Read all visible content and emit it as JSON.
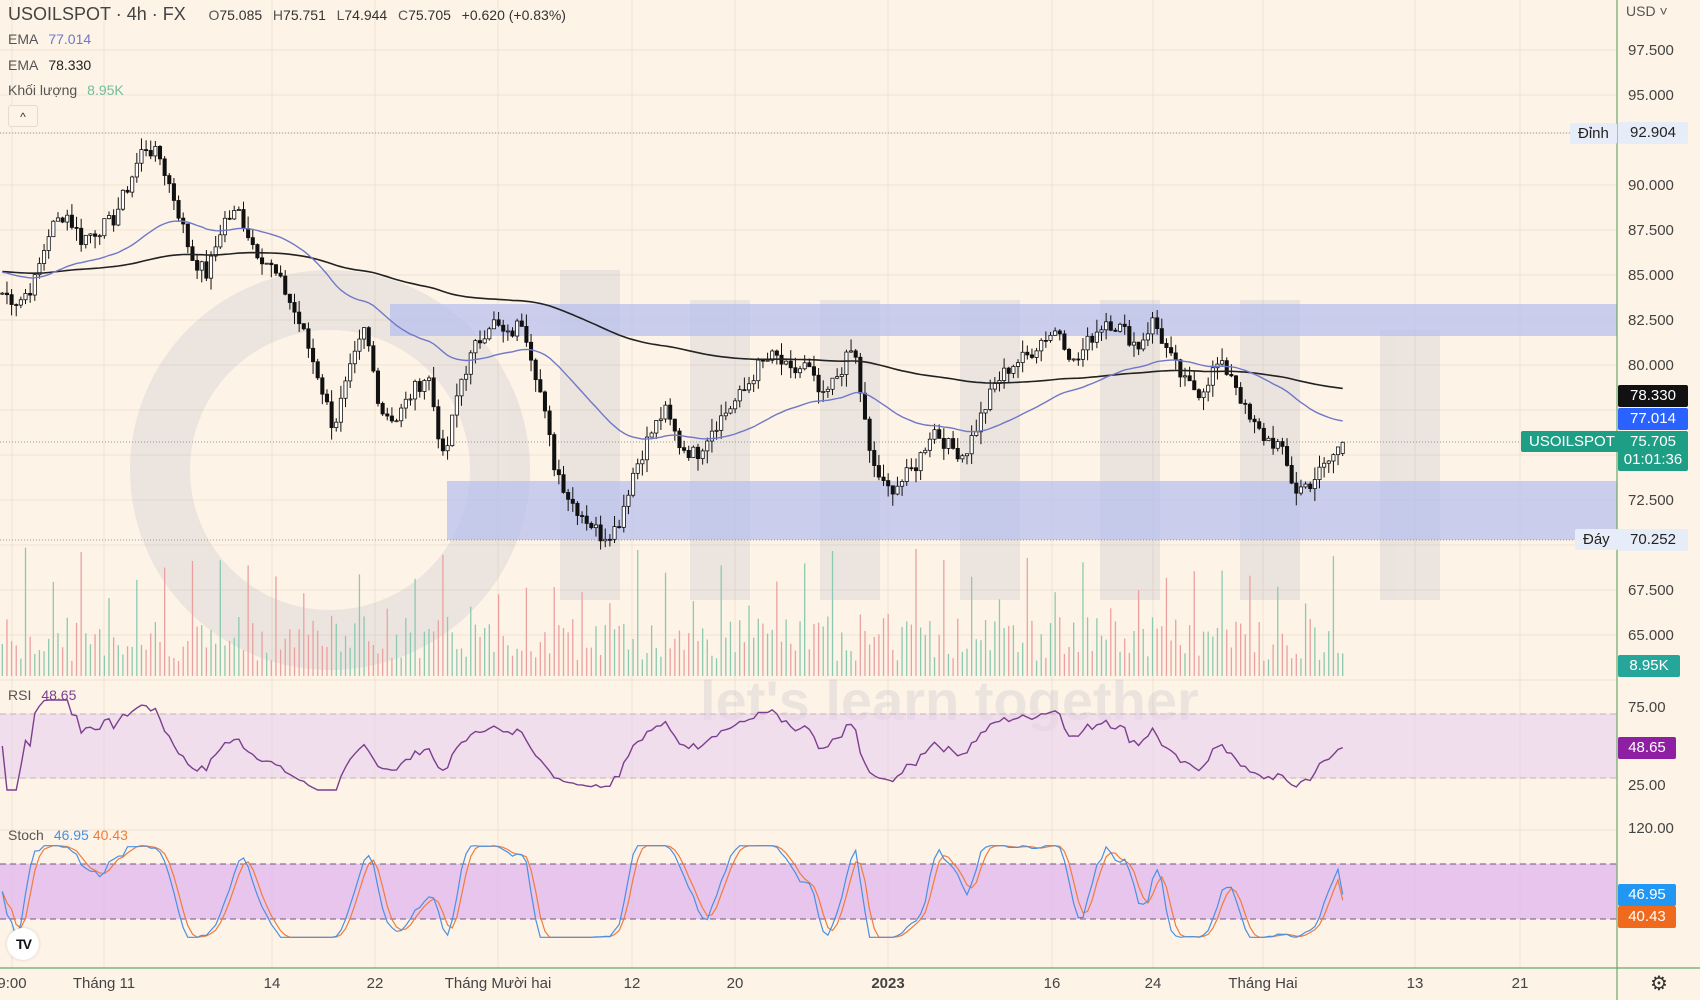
{
  "header": {
    "symbol": "USOILSPOT · 4h · FX",
    "open_k": "O",
    "open": "75.085",
    "high_k": "H",
    "high": "75.751",
    "low_k": "L",
    "low": "74.944",
    "close_k": "C",
    "close": "75.705",
    "change": "+0.620 (+0.83%)",
    "ema1_label": "EMA",
    "ema1_value": "77.014",
    "ema2_label": "EMA",
    "ema2_value": "78.330",
    "volume_label": "Khối lượng",
    "volume_value": "8.95K",
    "collapse_icon": "^"
  },
  "price_axis": {
    "currency": "USD ˅",
    "ticks": [
      "97.500",
      "95.000",
      "90.000",
      "87.500",
      "85.000",
      "82.500",
      "80.000",
      "72.500",
      "67.500",
      "65.000"
    ],
    "high_label": "Đỉnh",
    "high_value": "92.904",
    "low_label": "Đáy",
    "low_value": "70.252",
    "ema200_tag": "78.330",
    "ema50_tag": "77.014",
    "symbol_tag": "USOILSPOT",
    "last_price_tag": "75.705",
    "countdown": "01:01:36",
    "volume_tag": "8.95K"
  },
  "rsi": {
    "label": "RSI",
    "value": "48.65",
    "ticks": [
      "75.00",
      "25.00"
    ],
    "tag": "48.65"
  },
  "stoch": {
    "label": "Stoch",
    "k_value": "46.95",
    "d_value": "40.43",
    "ticks": [
      "120.00"
    ],
    "k_tag": "46.95",
    "d_tag": "40.43"
  },
  "time_axis": {
    "labels": [
      "9:00",
      "Tháng 11",
      "14",
      "22",
      "Tháng Mười hai",
      "12",
      "20",
      "2023",
      "16",
      "24",
      "Tháng Hai",
      "13",
      "21"
    ]
  },
  "watermark": "let's learn together",
  "colors": {
    "background": "#fdf3e6",
    "zone": "#b8c0ee",
    "ema50": "#6f78c8",
    "ema200": "#222222",
    "last_price": "#1f9e86",
    "ema50_tag": "#2962ff",
    "rsi_line": "#7b3f8f",
    "rsi_tag": "#8e1fa3",
    "stoch_k": "#4a90e2",
    "stoch_d": "#f07c3c",
    "volume_up": "#8cc9b0",
    "volume_down": "#eba0a0"
  },
  "chart_data": {
    "type": "candlestick",
    "title": "USOILSPOT · 4h · FX",
    "ylabel": "USD",
    "ylim": [
      63.5,
      99
    ],
    "x": [
      "9:00",
      "Tháng 11",
      "14",
      "22",
      "Tháng Mười hai",
      "12",
      "20",
      "2023",
      "16",
      "24",
      "Tháng Hai",
      "13",
      "21"
    ],
    "ohlc_last": {
      "open": 75.085,
      "high": 75.751,
      "low": 74.944,
      "close": 75.705,
      "change": 0.62,
      "change_pct": 0.83
    },
    "close_path_approx": [
      84.0,
      83.5,
      84.5,
      87.5,
      88.5,
      87.0,
      87.5,
      88.0,
      90.0,
      92.2,
      91.5,
      89.0,
      86.0,
      85.0,
      88.0,
      88.5,
      86.5,
      85.5,
      84.0,
      82.0,
      79.5,
      76.5,
      79.5,
      82.0,
      77.5,
      77.0,
      78.5,
      79.5,
      74.5,
      79.0,
      81.0,
      82.5,
      81.5,
      82.5,
      79.0,
      74.5,
      72.5,
      71.5,
      70.5,
      71.0,
      74.0,
      76.0,
      77.5,
      75.5,
      75.0,
      76.5,
      77.5,
      78.5,
      80.0,
      80.5,
      79.5,
      80.0,
      78.0,
      79.5,
      81.0,
      75.0,
      73.0,
      73.5,
      74.5,
      76.5,
      75.5,
      75.0,
      77.0,
      79.0,
      80.0,
      80.5,
      81.5,
      82.0,
      80.0,
      81.5,
      82.5,
      82.0,
      81.0,
      82.5,
      80.5,
      79.0,
      78.5,
      80.0,
      79.5,
      77.0,
      76.0,
      75.5,
      73.0,
      73.5,
      74.5,
      75.7
    ],
    "series": [
      {
        "name": "EMA 50",
        "last": 77.014
      },
      {
        "name": "EMA 200",
        "last": 78.33
      },
      {
        "name": "Volume",
        "last": "8.95K"
      },
      {
        "name": "RSI",
        "last": 48.65,
        "bands": [
          25,
          75
        ]
      },
      {
        "name": "Stoch %K",
        "last": 46.95
      },
      {
        "name": "Stoch %D",
        "last": 40.43
      }
    ],
    "annotations": [
      {
        "type": "zone",
        "name": "resistance",
        "from": 81.7,
        "to": 83.4
      },
      {
        "type": "zone",
        "name": "support",
        "from": 70.25,
        "to": 73.3
      },
      {
        "type": "hline",
        "label": "Đỉnh",
        "value": 92.904
      },
      {
        "type": "hline",
        "label": "Đáy",
        "value": 70.252
      },
      {
        "type": "hline",
        "label": "USOILSPOT",
        "value": 75.705
      }
    ]
  }
}
